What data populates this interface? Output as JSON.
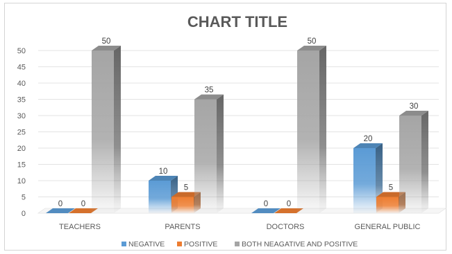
{
  "chart_data": {
    "type": "bar",
    "title": "CHART TITLE",
    "categories": [
      "TEACHERS",
      "PARENTS",
      "DOCTORS",
      "GENERAL PUBLIC"
    ],
    "series": [
      {
        "name": "NEGATIVE",
        "values": [
          0,
          10,
          0,
          20
        ],
        "color": "#5b9bd5"
      },
      {
        "name": "POSITIVE",
        "values": [
          0,
          5,
          0,
          5
        ],
        "color": "#ed7d31"
      },
      {
        "name": "BOTH NEAGATIVE AND POSITIVE",
        "values": [
          50,
          35,
          50,
          30
        ],
        "color": "#a5a5a5"
      }
    ],
    "yticks": [
      0,
      5,
      10,
      15,
      20,
      25,
      30,
      35,
      40,
      45,
      50
    ],
    "ylim": [
      0,
      50
    ],
    "grid": true,
    "legend_position": "bottom",
    "xlabel": "",
    "ylabel": ""
  }
}
